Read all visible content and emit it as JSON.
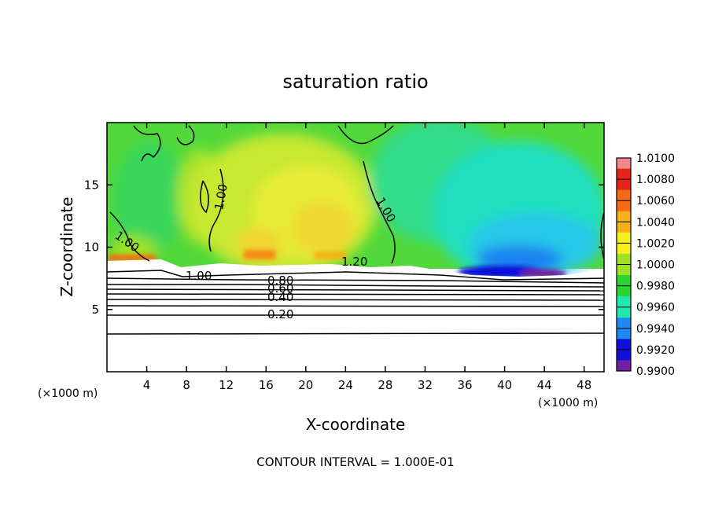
{
  "chart_data": {
    "type": "heatmap",
    "title": "saturation ratio",
    "xlabel": "X-coordinate",
    "ylabel": "Z-coordinate",
    "x_unit": "(×1000 m)",
    "y_unit": "(×1000 m)",
    "xlim": [
      0,
      50
    ],
    "ylim": [
      0,
      20
    ],
    "x_ticks": [
      4,
      8,
      12,
      16,
      20,
      24,
      28,
      32,
      36,
      40,
      44,
      48
    ],
    "y_ticks": [
      5,
      10,
      15
    ],
    "colorbar": {
      "ticks": [
        "1.0100",
        "1.0080",
        "1.0060",
        "1.0040",
        "1.0020",
        "1.0000",
        "0.9980",
        "0.9960",
        "0.9940",
        "0.9920",
        "0.9900"
      ],
      "colors": [
        "#f08a8a",
        "#e82418",
        "#f56a12",
        "#f5b218",
        "#f5f01c",
        "#9ee228",
        "#2bd431",
        "#20e8b0",
        "#1e88f5",
        "#1010d8",
        "#7020a0"
      ]
    },
    "contour_labels": [
      "1.00",
      "1.00",
      "1.00",
      "1.00",
      "1.20",
      "0.80",
      "0.60",
      "0.40",
      "0.20"
    ],
    "footer": "CONTOUR INTERVAL = 1.000E-01"
  }
}
